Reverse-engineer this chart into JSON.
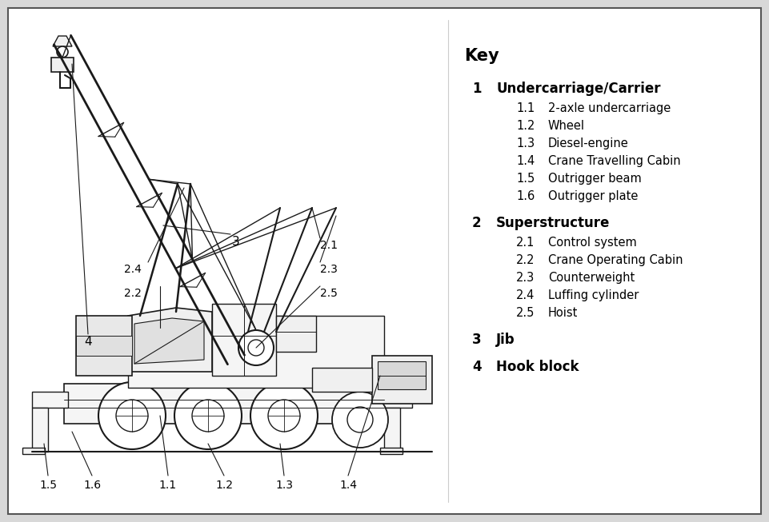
{
  "bg_color": "#d8d8d8",
  "panel_color": "#ffffff",
  "line_color": "#1a1a1a",
  "key_title": "Key",
  "key_entries": [
    {
      "num": "1",
      "label": "Undercarriage/Carrier",
      "bold": true,
      "sub": [
        {
          "num": "1.1",
          "label": "2-axle undercarriage"
        },
        {
          "num": "1.2",
          "label": "Wheel"
        },
        {
          "num": "1.3",
          "label": "Diesel-engine"
        },
        {
          "num": "1.4",
          "label": "Crane Travelling Cabin"
        },
        {
          "num": "1.5",
          "label": "Outrigger beam"
        },
        {
          "num": "1.6",
          "label": "Outrigger plate"
        }
      ]
    },
    {
      "num": "2",
      "label": "Superstructure",
      "bold": true,
      "sub": [
        {
          "num": "2.1",
          "label": "Control system"
        },
        {
          "num": "2.2",
          "label": "Crane Operating Cabin"
        },
        {
          "num": "2.3",
          "label": "Counterweight"
        },
        {
          "num": "2.4",
          "label": "Luffing cylinder"
        },
        {
          "num": "2.5",
          "label": "Hoist"
        }
      ]
    },
    {
      "num": "3",
      "label": "Jib",
      "bold": true,
      "sub": []
    },
    {
      "num": "4",
      "label": "Hook block",
      "bold": true,
      "sub": []
    }
  ],
  "fig_width": 9.61,
  "fig_height": 6.53,
  "dpi": 100
}
